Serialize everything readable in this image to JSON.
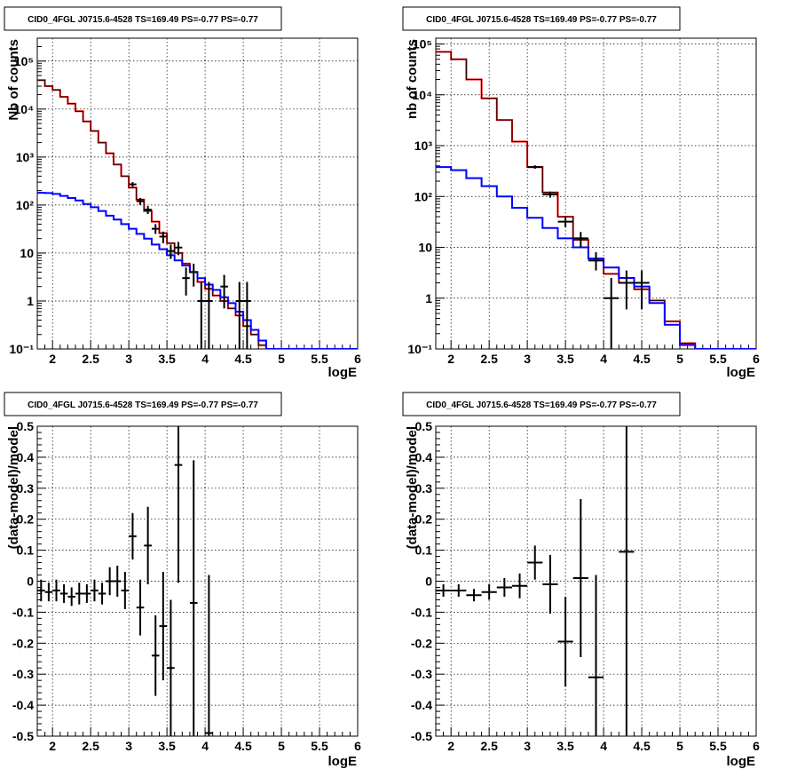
{
  "chart_data": [
    {
      "type": "line",
      "title": "CID0_4FGL J0715.6-4528 TS=169.49 PS=-0.77 PS=-0.77",
      "xlabel": "logE",
      "ylabel": "Nb of counts",
      "xlim": [
        1.8,
        6.0
      ],
      "ylim": [
        0.1,
        300000
      ],
      "yscale": "log",
      "grid": true,
      "bin_edges": [
        1.8,
        1.9,
        2.0,
        2.1,
        2.2,
        2.3,
        2.4,
        2.5,
        2.6,
        2.7,
        2.8,
        2.9,
        3.0,
        3.1,
        3.2,
        3.3,
        3.4,
        3.5,
        3.6,
        3.7,
        3.8,
        3.9,
        4.0,
        4.1,
        4.2,
        4.3,
        4.4,
        4.5,
        4.6,
        4.7,
        4.8,
        4.9,
        5.0,
        5.1,
        5.2,
        5.3,
        5.4,
        5.5,
        5.6,
        5.7,
        5.8,
        5.9,
        6.0
      ],
      "series": [
        {
          "color": "#ff0000",
          "kind": "step",
          "values": [
            40000,
            30000,
            25000,
            18000,
            13000,
            9000,
            5500,
            3500,
            2000,
            1200,
            700,
            400,
            230,
            130,
            75,
            45,
            26,
            16,
            10,
            6,
            4,
            2.5,
            1.8,
            1.3,
            1.0,
            0.7,
            0.5,
            0.3,
            0.2,
            0.12,
            0.1,
            0.1,
            0.1,
            0.1,
            0.1,
            0.1,
            0.1,
            0.1,
            0.1,
            0.1,
            0.1,
            0.1
          ]
        },
        {
          "color": "#000000",
          "kind": "step",
          "values": [
            40000,
            30000,
            25000,
            18000,
            13000,
            9000,
            5500,
            3500,
            2000,
            1200,
            700,
            400,
            230,
            130,
            75,
            45,
            26,
            16,
            10,
            6,
            4,
            2.5,
            1.8,
            1.3,
            1.0,
            0.7,
            0.5,
            0.3,
            0.2,
            0.12,
            0.1,
            0.1,
            0.1,
            0.1,
            0.1,
            0.1,
            0.1,
            0.1,
            0.1,
            0.1,
            0.1,
            0.1
          ]
        },
        {
          "color": "#0000ff",
          "kind": "step",
          "values": [
            180,
            178,
            170,
            155,
            140,
            125,
            105,
            90,
            75,
            60,
            50,
            40,
            32,
            25,
            20,
            15,
            12,
            9,
            7,
            5.5,
            4,
            3,
            2.2,
            1.7,
            1.2,
            0.9,
            0.6,
            0.4,
            0.25,
            0.15,
            0.1,
            0.1,
            0.1,
            0.1,
            0.1,
            0.1,
            0.1,
            0.1,
            0.1,
            0.1,
            0.1,
            0.1
          ]
        },
        {
          "color": "#000000",
          "kind": "points",
          "points": [
            {
              "x": 3.05,
              "y": 270,
              "ylo": 240,
              "yhi": 300
            },
            {
              "x": 3.15,
              "y": 120,
              "ylo": 100,
              "yhi": 140
            },
            {
              "x": 3.25,
              "y": 80,
              "ylo": 65,
              "yhi": 95
            },
            {
              "x": 3.35,
              "y": 32,
              "ylo": 25,
              "yhi": 40
            },
            {
              "x": 3.45,
              "y": 22,
              "ylo": 16,
              "yhi": 28
            },
            {
              "x": 3.55,
              "y": 11,
              "ylo": 7.5,
              "yhi": 15
            },
            {
              "x": 3.65,
              "y": 13,
              "ylo": 9,
              "yhi": 17
            },
            {
              "x": 3.75,
              "y": 3,
              "ylo": 1.3,
              "yhi": 5
            },
            {
              "x": 3.85,
              "y": 4,
              "ylo": 2,
              "yhi": 6
            },
            {
              "x": 3.95,
              "y": 1,
              "ylo": 0.1,
              "yhi": 2.5
            },
            {
              "x": 4.05,
              "y": 1,
              "ylo": 0.1,
              "yhi": 2.5
            },
            {
              "x": 4.25,
              "y": 2,
              "ylo": 0.7,
              "yhi": 3.5
            },
            {
              "x": 4.45,
              "y": 1,
              "ylo": 0.1,
              "yhi": 2.5
            },
            {
              "x": 4.55,
              "y": 1,
              "ylo": 0.1,
              "yhi": 2.5
            }
          ]
        }
      ]
    },
    {
      "type": "line",
      "title": "CID0_4FGL J0715.6-4528 TS=169.49 PS=-0.77 PS=-0.77",
      "xlabel": "logE",
      "ylabel": "nb of counts",
      "xlim": [
        1.8,
        6.0
      ],
      "ylim": [
        0.1,
        130000
      ],
      "yscale": "log",
      "grid": true,
      "bin_edges": [
        1.8,
        2.0,
        2.2,
        2.4,
        2.6,
        2.8,
        3.0,
        3.2,
        3.4,
        3.6,
        3.8,
        4.0,
        4.2,
        4.4,
        4.6,
        4.8,
        5.0,
        5.2,
        5.4,
        5.6,
        5.8,
        6.0
      ],
      "series": [
        {
          "color": "#ff0000",
          "kind": "step",
          "values": [
            70000,
            50000,
            20000,
            8500,
            3200,
            1200,
            380,
            120,
            40,
            14,
            6,
            3,
            2,
            1.5,
            0.9,
            0.35,
            0.13,
            0.1,
            0.1,
            0.1,
            0.1
          ]
        },
        {
          "color": "#000000",
          "kind": "step",
          "values": [
            70000,
            50000,
            20000,
            8500,
            3200,
            1200,
            380,
            120,
            40,
            14,
            6,
            3,
            2,
            1.5,
            0.9,
            0.35,
            0.13,
            0.1,
            0.1,
            0.1,
            0.1
          ]
        },
        {
          "color": "#0000ff",
          "kind": "step",
          "values": [
            380,
            330,
            230,
            160,
            100,
            60,
            38,
            24,
            15,
            10,
            6,
            4,
            2.5,
            1.7,
            0.8,
            0.3,
            0.12,
            0.1,
            0.1,
            0.1,
            0.1
          ]
        },
        {
          "color": "#000000",
          "kind": "points",
          "points": [
            {
              "x": 3.1,
              "y": 380,
              "ylo": 350,
              "yhi": 410
            },
            {
              "x": 3.3,
              "y": 110,
              "ylo": 95,
              "yhi": 125
            },
            {
              "x": 3.5,
              "y": 32,
              "ylo": 25,
              "yhi": 40
            },
            {
              "x": 3.7,
              "y": 15,
              "ylo": 10,
              "yhi": 20
            },
            {
              "x": 3.9,
              "y": 5.5,
              "ylo": 3.5,
              "yhi": 8
            },
            {
              "x": 4.1,
              "y": 1,
              "ylo": 0.1,
              "yhi": 2.5
            },
            {
              "x": 4.3,
              "y": 2,
              "ylo": 0.6,
              "yhi": 3.5
            },
            {
              "x": 4.5,
              "y": 2,
              "ylo": 0.6,
              "yhi": 3.5
            }
          ]
        }
      ]
    },
    {
      "type": "scatter",
      "title": "CID0_4FGL J0715.6-4528 TS=169.49 PS=-0.77 PS=-0.77",
      "xlabel": "logE",
      "ylabel": "(data-model)/model",
      "xlim": [
        1.8,
        6.0
      ],
      "ylim": [
        -0.5,
        0.5
      ],
      "grid": true,
      "points": [
        {
          "x": 1.85,
          "y": -0.03,
          "err": 0.035,
          "xerr": 0.05
        },
        {
          "x": 1.95,
          "y": -0.035,
          "err": 0.03,
          "xerr": 0.05
        },
        {
          "x": 2.05,
          "y": -0.03,
          "err": 0.035,
          "xerr": 0.05
        },
        {
          "x": 2.15,
          "y": -0.04,
          "err": 0.03,
          "xerr": 0.05
        },
        {
          "x": 2.25,
          "y": -0.05,
          "err": 0.03,
          "xerr": 0.05
        },
        {
          "x": 2.35,
          "y": -0.04,
          "err": 0.035,
          "xerr": 0.05
        },
        {
          "x": 2.45,
          "y": -0.04,
          "err": 0.03,
          "xerr": 0.05
        },
        {
          "x": 2.55,
          "y": -0.03,
          "err": 0.035,
          "xerr": 0.05
        },
        {
          "x": 2.65,
          "y": -0.04,
          "err": 0.035,
          "xerr": 0.05
        },
        {
          "x": 2.75,
          "y": 0.0,
          "err": 0.045,
          "xerr": 0.05
        },
        {
          "x": 2.85,
          "y": 0.0,
          "err": 0.05,
          "xerr": 0.05
        },
        {
          "x": 2.95,
          "y": -0.03,
          "err": 0.06,
          "xerr": 0.05
        },
        {
          "x": 3.05,
          "y": 0.145,
          "err": 0.075,
          "xerr": 0.05
        },
        {
          "x": 3.15,
          "y": -0.085,
          "err": 0.09,
          "xerr": 0.05
        },
        {
          "x": 3.25,
          "y": 0.115,
          "err": 0.125,
          "xerr": 0.05
        },
        {
          "x": 3.35,
          "y": -0.24,
          "err": 0.13,
          "xerr": 0.05
        },
        {
          "x": 3.45,
          "y": -0.145,
          "err": 0.175,
          "xerr": 0.05
        },
        {
          "x": 3.55,
          "y": -0.28,
          "err": 0.22,
          "xerr": 0.05
        },
        {
          "x": 3.65,
          "y": 0.375,
          "err": 0.38,
          "xerr": 0.05
        },
        {
          "x": 3.85,
          "y": -0.07,
          "err": 0.46,
          "xerr": 0.05
        },
        {
          "x": 4.05,
          "y": -0.49,
          "err": 0.51,
          "xerr": 0.05
        }
      ]
    },
    {
      "type": "scatter",
      "title": "CID0_4FGL J0715.6-4528 TS=169.49 PS=-0.77 PS=-0.77",
      "xlabel": "logE",
      "ylabel": "(data-model)/model",
      "xlim": [
        1.8,
        6.0
      ],
      "ylim": [
        -0.5,
        0.5
      ],
      "grid": true,
      "points": [
        {
          "x": 1.9,
          "y": -0.03,
          "err": 0.02,
          "xerr": 0.1
        },
        {
          "x": 2.1,
          "y": -0.03,
          "err": 0.02,
          "xerr": 0.1
        },
        {
          "x": 2.3,
          "y": -0.045,
          "err": 0.02,
          "xerr": 0.1
        },
        {
          "x": 2.5,
          "y": -0.035,
          "err": 0.025,
          "xerr": 0.1
        },
        {
          "x": 2.7,
          "y": -0.02,
          "err": 0.03,
          "xerr": 0.1
        },
        {
          "x": 2.9,
          "y": -0.015,
          "err": 0.04,
          "xerr": 0.1
        },
        {
          "x": 3.1,
          "y": 0.06,
          "err": 0.055,
          "xerr": 0.1
        },
        {
          "x": 3.3,
          "y": -0.01,
          "err": 0.095,
          "xerr": 0.1
        },
        {
          "x": 3.5,
          "y": -0.195,
          "err": 0.145,
          "xerr": 0.1
        },
        {
          "x": 3.7,
          "y": 0.01,
          "err": 0.255,
          "xerr": 0.1
        },
        {
          "x": 3.9,
          "y": -0.31,
          "err": 0.33,
          "xerr": 0.1
        },
        {
          "x": 4.3,
          "y": 0.095,
          "err": 0.6,
          "xerr": 0.1
        }
      ]
    }
  ]
}
